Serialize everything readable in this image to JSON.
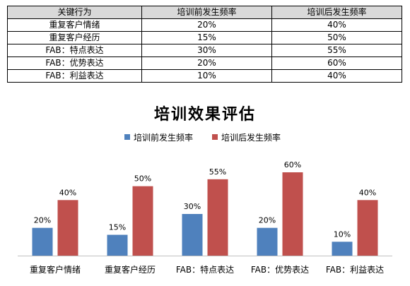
{
  "table": {
    "headers": [
      "关键行为",
      "培训前发生频率",
      "培训后发生频率"
    ],
    "rows": [
      [
        "重复客户情绪",
        "20%",
        "40%"
      ],
      [
        "重复客户经历",
        "15%",
        "50%"
      ],
      [
        "FAB：特点表达",
        "30%",
        "55%"
      ],
      [
        "FAB：优势表达",
        "20%",
        "60%"
      ],
      [
        "FAB：利益表达",
        "10%",
        "40%"
      ]
    ]
  },
  "chart_data": {
    "type": "bar",
    "title": "培训效果评估",
    "categories": [
      "重复客户情绪",
      "重复客户经历",
      "FAB：特点表达",
      "FAB：优势表达",
      "FAB：利益表达"
    ],
    "series": [
      {
        "name": "培训前发生频率",
        "values": [
          20,
          15,
          30,
          20,
          10
        ],
        "labels": [
          "20%",
          "15%",
          "30%",
          "20%",
          "10%"
        ],
        "color": "#4f81bd"
      },
      {
        "name": "培训后发生频率",
        "values": [
          40,
          50,
          55,
          60,
          40
        ],
        "labels": [
          "40%",
          "50%",
          "55%",
          "60%",
          "40%"
        ],
        "color": "#c0504d"
      }
    ],
    "ylim": [
      0,
      60
    ],
    "legend": "top-center",
    "grid": false
  }
}
